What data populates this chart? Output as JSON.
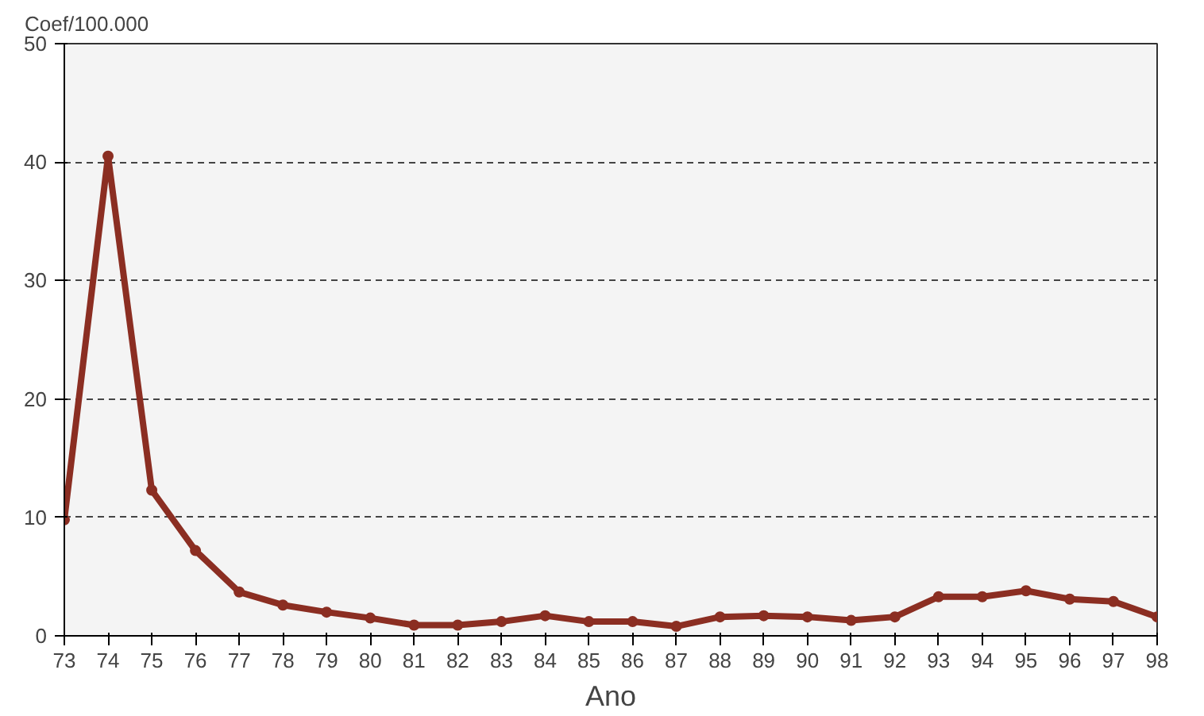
{
  "chart_data": {
    "type": "line",
    "xlabel": "Ano",
    "ylabel": "Coef/100.000",
    "categories": [
      "73",
      "74",
      "75",
      "76",
      "77",
      "78",
      "79",
      "80",
      "81",
      "82",
      "83",
      "84",
      "85",
      "86",
      "87",
      "88",
      "89",
      "90",
      "91",
      "92",
      "93",
      "94",
      "95",
      "96",
      "97",
      "98"
    ],
    "series": [
      {
        "color": "#8b2e22",
        "values": [
          9.8,
          40.5,
          12.3,
          7.2,
          3.7,
          2.6,
          2.0,
          1.5,
          0.9,
          0.9,
          1.2,
          1.7,
          1.2,
          1.2,
          0.8,
          1.6,
          1.7,
          1.6,
          1.3,
          1.6,
          3.3,
          3.3,
          3.8,
          3.1,
          2.9,
          1.6
        ]
      }
    ],
    "ylim": [
      0,
      50
    ],
    "yticks": [
      0,
      10,
      20,
      30,
      40,
      50
    ],
    "grid": "y",
    "marker": "circle",
    "line_style": "solid"
  }
}
